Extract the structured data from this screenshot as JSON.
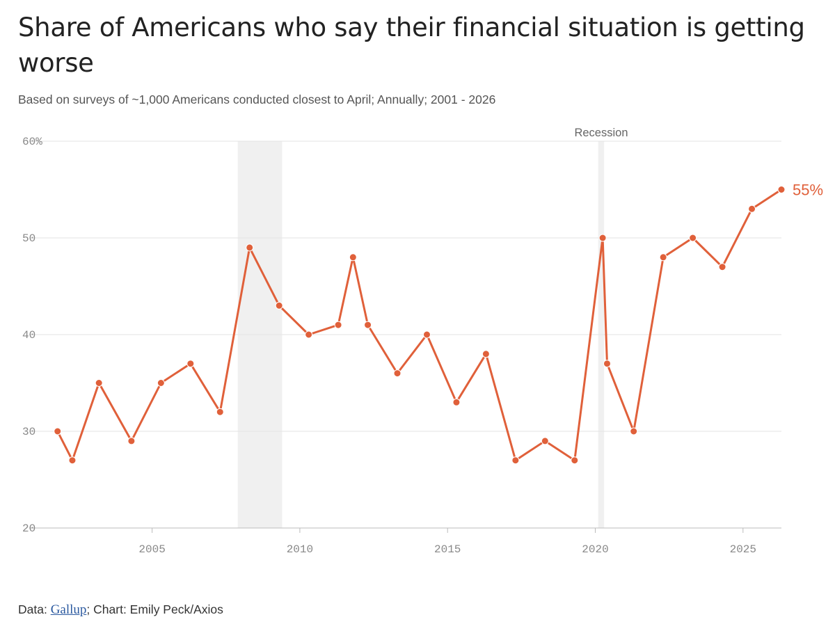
{
  "header": {
    "title": "Share of Americans who say their financial situation is getting worse",
    "subtitle": "Based on surveys of ~1,000 Americans conducted closest to April; Annually; 2001 - 2026"
  },
  "footer": {
    "data_prefix": "Data: ",
    "source_link": "Gallup",
    "credit": "; Chart: Emily Peck/Axios"
  },
  "colors": {
    "line": "#e0603a",
    "recession_band": "#f0f0f0",
    "grid": "#e3e3e3"
  },
  "chart_data": {
    "type": "line",
    "title": "Share of Americans who say their financial situation is getting worse",
    "subtitle": "Based on surveys of ~1,000 Americans conducted closest to April; Annually; 2001 - 2026",
    "xlabel": "",
    "ylabel": "",
    "xlim": [
      2001.5,
      2026.3
    ],
    "ylim": [
      20,
      60
    ],
    "x_ticks": [
      2005,
      2010,
      2015,
      2020,
      2025
    ],
    "y_ticks": [
      {
        "value": 60,
        "label": "60%"
      },
      {
        "value": 50,
        "label": "50"
      },
      {
        "value": 40,
        "label": "40"
      },
      {
        "value": 30,
        "label": "30"
      },
      {
        "value": 20,
        "label": "20"
      }
    ],
    "grid": true,
    "recessions": [
      {
        "start": 2007.9,
        "end": 2009.4
      },
      {
        "start": 2020.1,
        "end": 2020.3
      }
    ],
    "recession_label": "Recession",
    "series": [
      {
        "x": [
          2001.8,
          2002.3,
          2003.2,
          2004.3,
          2005.3,
          2006.3,
          2007.3,
          2008.3,
          2009.3,
          2010.3,
          2011.3,
          2011.8,
          2012.3,
          2013.3,
          2014.3,
          2015.3,
          2016.3,
          2017.3,
          2018.3,
          2019.3,
          2020.25,
          2020.4,
          2021.3,
          2022.3,
          2023.3,
          2024.3,
          2025.3,
          2026.3
        ],
        "values": [
          30,
          27,
          35,
          29,
          35,
          37,
          32,
          49,
          43,
          40,
          41,
          48,
          41,
          36,
          40,
          33,
          38,
          27,
          29,
          27,
          50,
          37,
          30,
          48,
          50,
          47,
          53,
          55
        ]
      }
    ],
    "end_label": "55%"
  }
}
